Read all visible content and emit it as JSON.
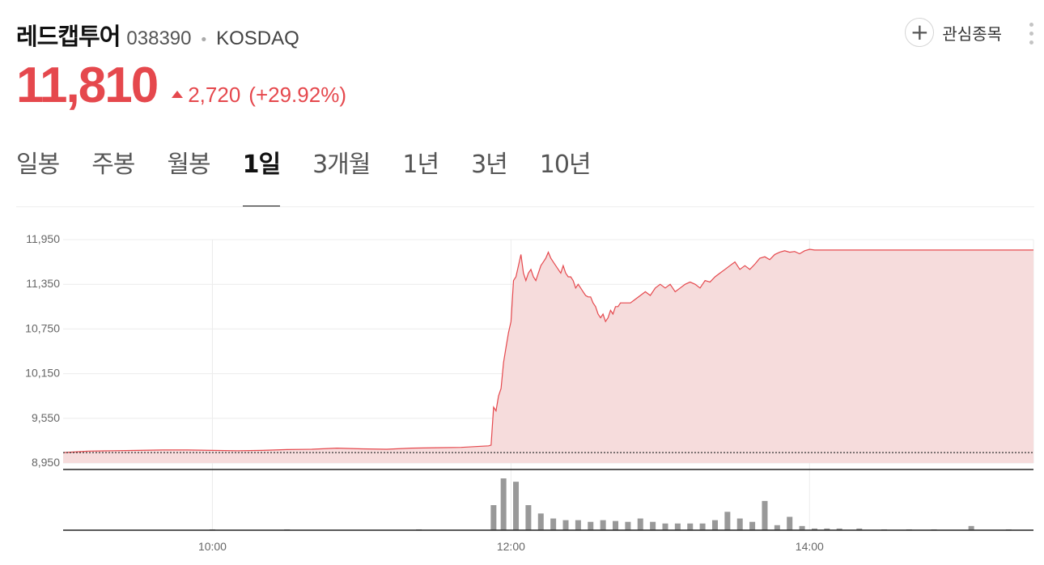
{
  "stock": {
    "name": "레드캡투어",
    "code": "038390",
    "separator": "•",
    "market": "KOSDAQ",
    "price": "11,810",
    "change_amount": "2,720",
    "change_percent": "(+29.92%)",
    "direction": "up",
    "up_color": "#e5484d"
  },
  "actions": {
    "watchlist_label": "관심종목",
    "watchlist_icon": "plus-icon",
    "more_icon": "more-vertical-icon"
  },
  "tabs": [
    {
      "label": "일봉",
      "active": false
    },
    {
      "label": "주봉",
      "active": false
    },
    {
      "label": "월봉",
      "active": false
    },
    {
      "label": "1일",
      "active": true
    },
    {
      "label": "3개월",
      "active": false
    },
    {
      "label": "1년",
      "active": false
    },
    {
      "label": "3년",
      "active": false
    },
    {
      "label": "10년",
      "active": false
    }
  ],
  "chart_data": {
    "type": "area",
    "ylim": [
      8950,
      11950
    ],
    "yticks": [
      "11,950",
      "11,350",
      "10,750",
      "10,150",
      "9,550",
      "8,950"
    ],
    "ytick_values": [
      11950,
      11350,
      10750,
      10150,
      9550,
      8950
    ],
    "xticks": [
      "10:00",
      "12:00",
      "14:00"
    ],
    "xtick_minutes": [
      600,
      720,
      840
    ],
    "xlim_minutes": [
      540,
      930
    ],
    "previous_close": 9090,
    "series": [
      {
        "color": "#e5484d",
        "points": [
          [
            540,
            9090
          ],
          [
            550,
            9110
          ],
          [
            560,
            9115
          ],
          [
            570,
            9120
          ],
          [
            580,
            9125
          ],
          [
            590,
            9125
          ],
          [
            600,
            9120
          ],
          [
            610,
            9115
          ],
          [
            620,
            9120
          ],
          [
            630,
            9130
          ],
          [
            640,
            9135
          ],
          [
            650,
            9150
          ],
          [
            660,
            9140
          ],
          [
            670,
            9135
          ],
          [
            680,
            9150
          ],
          [
            690,
            9155
          ],
          [
            700,
            9160
          ],
          [
            708,
            9175
          ],
          [
            711,
            9180
          ],
          [
            712,
            9190
          ],
          [
            713,
            9700
          ],
          [
            714,
            9650
          ],
          [
            715,
            9850
          ],
          [
            716,
            9950
          ],
          [
            717,
            10300
          ],
          [
            718,
            10500
          ],
          [
            719,
            10700
          ],
          [
            720,
            10850
          ],
          [
            721,
            11400
          ],
          [
            722,
            11450
          ],
          [
            723,
            11600
          ],
          [
            724,
            11750
          ],
          [
            725,
            11500
          ],
          [
            726,
            11400
          ],
          [
            727,
            11500
          ],
          [
            728,
            11550
          ],
          [
            729,
            11450
          ],
          [
            730,
            11400
          ],
          [
            731,
            11500
          ],
          [
            732,
            11600
          ],
          [
            733,
            11650
          ],
          [
            734,
            11700
          ],
          [
            735,
            11780
          ],
          [
            736,
            11700
          ],
          [
            737,
            11650
          ],
          [
            738,
            11600
          ],
          [
            739,
            11550
          ],
          [
            740,
            11500
          ],
          [
            741,
            11600
          ],
          [
            742,
            11500
          ],
          [
            743,
            11450
          ],
          [
            744,
            11450
          ],
          [
            745,
            11400
          ],
          [
            746,
            11300
          ],
          [
            747,
            11350
          ],
          [
            748,
            11300
          ],
          [
            749,
            11250
          ],
          [
            750,
            11200
          ],
          [
            751,
            11180
          ],
          [
            752,
            11180
          ],
          [
            753,
            11100
          ],
          [
            754,
            11050
          ],
          [
            755,
            10950
          ],
          [
            756,
            10900
          ],
          [
            757,
            10950
          ],
          [
            758,
            10850
          ],
          [
            759,
            10900
          ],
          [
            760,
            11000
          ],
          [
            761,
            10950
          ],
          [
            762,
            11050
          ],
          [
            763,
            11050
          ],
          [
            764,
            11100
          ],
          [
            766,
            11100
          ],
          [
            768,
            11100
          ],
          [
            770,
            11150
          ],
          [
            772,
            11200
          ],
          [
            774,
            11250
          ],
          [
            776,
            11200
          ],
          [
            778,
            11300
          ],
          [
            780,
            11350
          ],
          [
            782,
            11300
          ],
          [
            784,
            11350
          ],
          [
            786,
            11250
          ],
          [
            788,
            11300
          ],
          [
            790,
            11350
          ],
          [
            792,
            11380
          ],
          [
            794,
            11350
          ],
          [
            796,
            11300
          ],
          [
            798,
            11400
          ],
          [
            800,
            11380
          ],
          [
            802,
            11450
          ],
          [
            804,
            11500
          ],
          [
            806,
            11550
          ],
          [
            808,
            11600
          ],
          [
            810,
            11650
          ],
          [
            812,
            11550
          ],
          [
            814,
            11600
          ],
          [
            816,
            11550
          ],
          [
            818,
            11620
          ],
          [
            820,
            11700
          ],
          [
            822,
            11720
          ],
          [
            824,
            11680
          ],
          [
            826,
            11750
          ],
          [
            828,
            11780
          ],
          [
            830,
            11800
          ],
          [
            832,
            11780
          ],
          [
            834,
            11790
          ],
          [
            836,
            11760
          ],
          [
            838,
            11800
          ],
          [
            840,
            11820
          ],
          [
            842,
            11810
          ],
          [
            845,
            11810
          ],
          [
            850,
            11810
          ],
          [
            870,
            11810
          ],
          [
            890,
            11810
          ],
          [
            910,
            11810
          ],
          [
            930,
            11810
          ]
        ]
      }
    ],
    "volume": [
      [
        600,
        1
      ],
      [
        630,
        1
      ],
      [
        683,
        1
      ],
      [
        713,
        30
      ],
      [
        717,
        62
      ],
      [
        722,
        58
      ],
      [
        727,
        30
      ],
      [
        732,
        20
      ],
      [
        737,
        14
      ],
      [
        742,
        12
      ],
      [
        747,
        12
      ],
      [
        752,
        10
      ],
      [
        757,
        12
      ],
      [
        762,
        11
      ],
      [
        767,
        10
      ],
      [
        772,
        14
      ],
      [
        777,
        10
      ],
      [
        782,
        8
      ],
      [
        787,
        8
      ],
      [
        792,
        8
      ],
      [
        797,
        8
      ],
      [
        802,
        12
      ],
      [
        807,
        22
      ],
      [
        812,
        14
      ],
      [
        817,
        10
      ],
      [
        822,
        35
      ],
      [
        827,
        6
      ],
      [
        832,
        16
      ],
      [
        837,
        5
      ],
      [
        842,
        2
      ],
      [
        847,
        2
      ],
      [
        852,
        2
      ],
      [
        860,
        2
      ],
      [
        870,
        1
      ],
      [
        880,
        1
      ],
      [
        890,
        1
      ],
      [
        905,
        5
      ],
      [
        920,
        1
      ]
    ]
  }
}
